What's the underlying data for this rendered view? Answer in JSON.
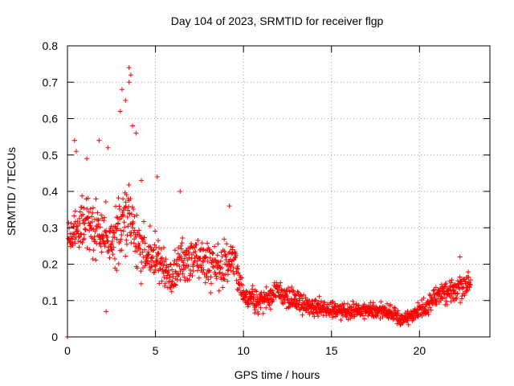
{
  "chart_data": {
    "type": "scatter",
    "title": "Day 104 of 2023, SRMTID for receiver flgp",
    "xlabel": "GPS time / hours",
    "ylabel": "SRMTID / TECUs",
    "xlim": [
      0,
      24
    ],
    "ylim": [
      0,
      0.8
    ],
    "grid": true,
    "marker": "+",
    "marker_color": "#ff0000",
    "x_ticks": [
      0,
      5,
      10,
      15,
      20
    ],
    "x_tick_labels": [
      "0",
      "5",
      "10",
      "15",
      "20"
    ],
    "y_ticks": [
      0,
      0.1,
      0.2,
      0.3,
      0.4,
      0.5,
      0.6,
      0.7,
      0.8
    ],
    "y_tick_labels": [
      "0",
      "0.1",
      "0.2",
      "0.3",
      "0.4",
      "0.5",
      "0.6",
      "0.7",
      "0.8"
    ],
    "series": [
      {
        "name": "SRMTID",
        "trend": [
          {
            "x": 0.0,
            "y": 0.27,
            "spread": 0.05
          },
          {
            "x": 0.5,
            "y": 0.29,
            "spread": 0.06
          },
          {
            "x": 1.0,
            "y": 0.31,
            "spread": 0.07
          },
          {
            "x": 1.5,
            "y": 0.29,
            "spread": 0.06
          },
          {
            "x": 2.0,
            "y": 0.28,
            "spread": 0.07
          },
          {
            "x": 2.5,
            "y": 0.26,
            "spread": 0.07
          },
          {
            "x": 3.0,
            "y": 0.3,
            "spread": 0.08
          },
          {
            "x": 3.5,
            "y": 0.34,
            "spread": 0.1
          },
          {
            "x": 4.0,
            "y": 0.26,
            "spread": 0.08
          },
          {
            "x": 4.5,
            "y": 0.23,
            "spread": 0.06
          },
          {
            "x": 5.0,
            "y": 0.22,
            "spread": 0.06
          },
          {
            "x": 5.5,
            "y": 0.18,
            "spread": 0.05
          },
          {
            "x": 6.0,
            "y": 0.17,
            "spread": 0.05
          },
          {
            "x": 6.5,
            "y": 0.21,
            "spread": 0.06
          },
          {
            "x": 7.0,
            "y": 0.22,
            "spread": 0.06
          },
          {
            "x": 7.5,
            "y": 0.22,
            "spread": 0.06
          },
          {
            "x": 8.0,
            "y": 0.2,
            "spread": 0.06
          },
          {
            "x": 8.5,
            "y": 0.2,
            "spread": 0.06
          },
          {
            "x": 9.0,
            "y": 0.2,
            "spread": 0.05
          },
          {
            "x": 9.5,
            "y": 0.21,
            "spread": 0.04
          },
          {
            "x": 10.0,
            "y": 0.11,
            "spread": 0.03
          },
          {
            "x": 11.0,
            "y": 0.1,
            "spread": 0.03
          },
          {
            "x": 12.0,
            "y": 0.12,
            "spread": 0.03
          },
          {
            "x": 13.0,
            "y": 0.1,
            "spread": 0.03
          },
          {
            "x": 14.0,
            "y": 0.08,
            "spread": 0.025
          },
          {
            "x": 15.0,
            "y": 0.075,
            "spread": 0.025
          },
          {
            "x": 16.0,
            "y": 0.07,
            "spread": 0.02
          },
          {
            "x": 17.0,
            "y": 0.075,
            "spread": 0.02
          },
          {
            "x": 18.0,
            "y": 0.07,
            "spread": 0.025
          },
          {
            "x": 19.0,
            "y": 0.05,
            "spread": 0.02
          },
          {
            "x": 20.0,
            "y": 0.07,
            "spread": 0.02
          },
          {
            "x": 21.0,
            "y": 0.11,
            "spread": 0.03
          },
          {
            "x": 22.0,
            "y": 0.13,
            "spread": 0.035
          },
          {
            "x": 22.9,
            "y": 0.14,
            "spread": 0.035
          }
        ],
        "outliers": [
          {
            "x": 0.0,
            "y": 0.0
          },
          {
            "x": 0.4,
            "y": 0.54
          },
          {
            "x": 0.5,
            "y": 0.51
          },
          {
            "x": 1.1,
            "y": 0.49
          },
          {
            "x": 1.8,
            "y": 0.54
          },
          {
            "x": 2.3,
            "y": 0.52
          },
          {
            "x": 2.2,
            "y": 0.07
          },
          {
            "x": 3.0,
            "y": 0.62
          },
          {
            "x": 3.1,
            "y": 0.68
          },
          {
            "x": 3.3,
            "y": 0.65
          },
          {
            "x": 3.5,
            "y": 0.74
          },
          {
            "x": 3.6,
            "y": 0.72
          },
          {
            "x": 3.5,
            "y": 0.7
          },
          {
            "x": 3.7,
            "y": 0.58
          },
          {
            "x": 3.9,
            "y": 0.56
          },
          {
            "x": 4.2,
            "y": 0.43
          },
          {
            "x": 5.1,
            "y": 0.44
          },
          {
            "x": 6.4,
            "y": 0.4
          },
          {
            "x": 9.2,
            "y": 0.36
          },
          {
            "x": 22.3,
            "y": 0.22
          }
        ]
      }
    ]
  }
}
